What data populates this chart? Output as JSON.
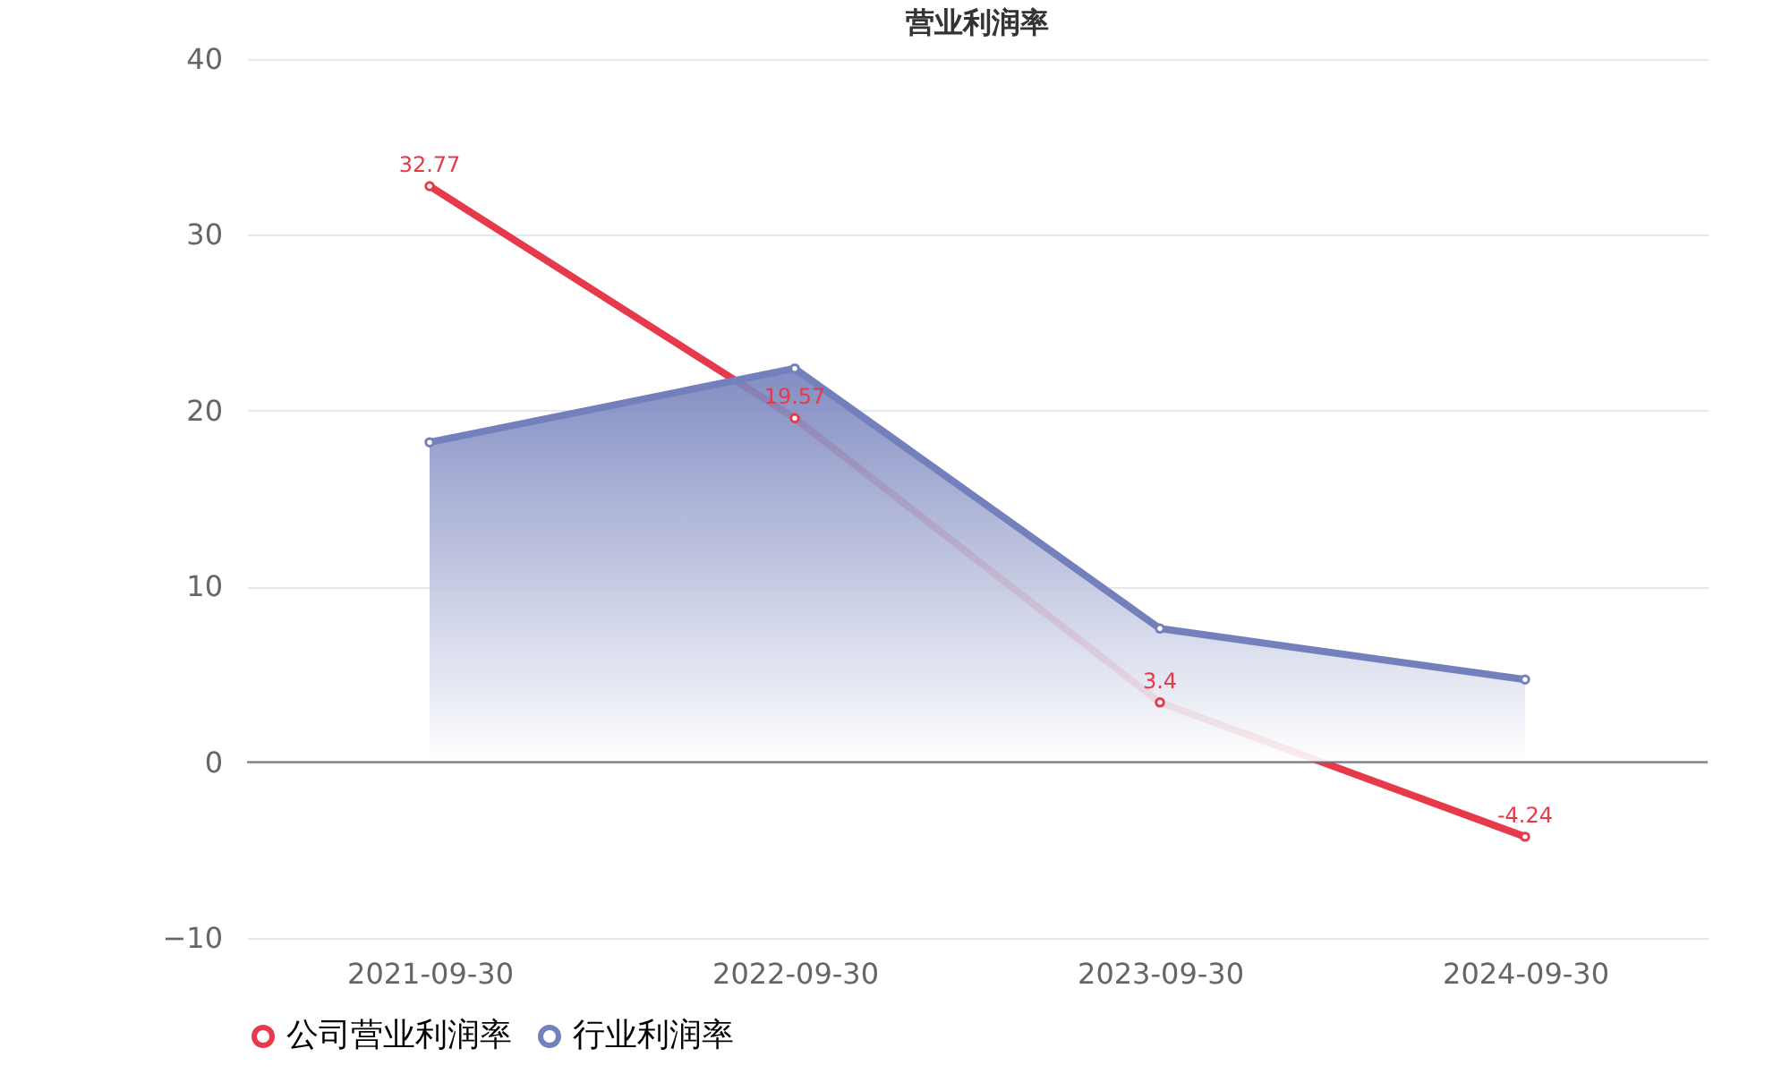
{
  "chart_data": {
    "type": "line",
    "title": "营业利润率",
    "categories": [
      "2021-09-30",
      "2022-09-30",
      "2023-09-30",
      "2024-09-30"
    ],
    "series": [
      {
        "name": "公司营业利润率",
        "color": "#e63a4a",
        "values": [
          32.77,
          19.57,
          3.4,
          -4.24
        ],
        "value_labels": [
          "32.77",
          "19.57",
          "3.4",
          "-4.24"
        ]
      },
      {
        "name": "行业利润率",
        "type": "area",
        "color": "#7480bb",
        "values": [
          18.2,
          22.4,
          7.6,
          4.7
        ]
      }
    ],
    "ylim": [
      -10,
      40
    ],
    "yticks": [
      -10,
      0,
      10,
      20,
      30,
      40
    ],
    "grid": "y",
    "legend": "bottom",
    "marker": "circle"
  }
}
